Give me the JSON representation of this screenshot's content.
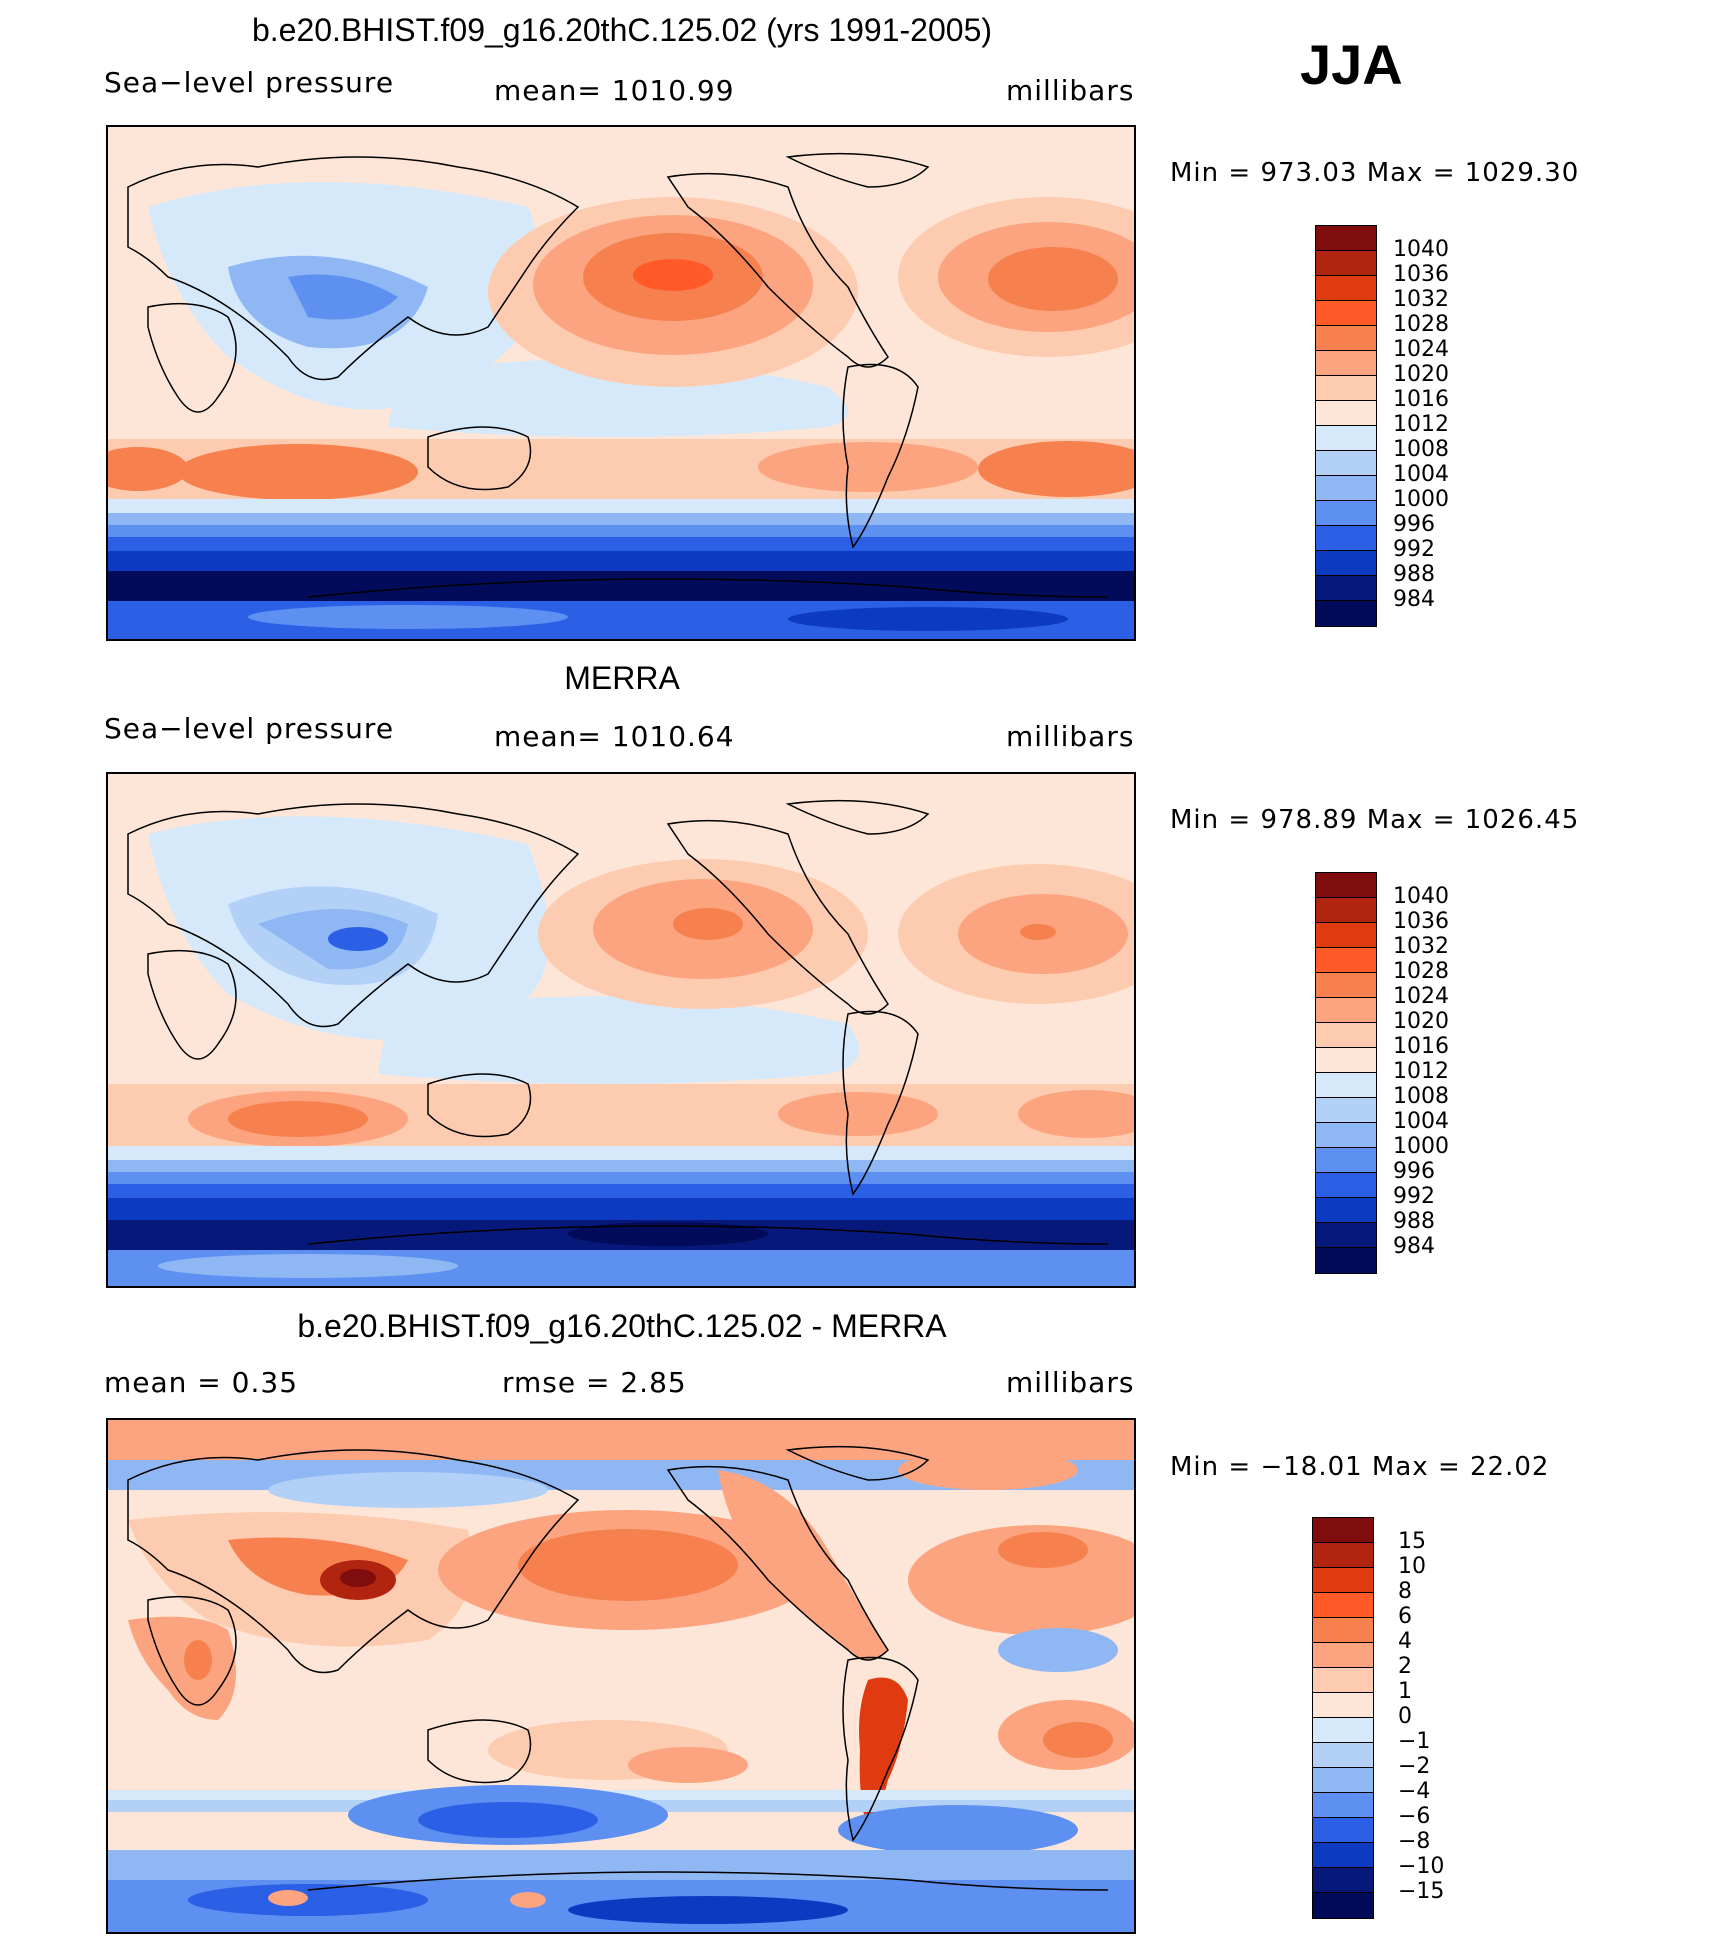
{
  "season": "JJA",
  "panels": [
    {
      "title": "b.e20.BHIST.f09_g16.20thC.125.02 (yrs 1991-2005)",
      "variable": "Sea−level pressure",
      "stat": "mean=  1010.99",
      "units": "millibars",
      "minmax": "Min  =  973.03  Max  =  1029.30",
      "colorbar_labels": [
        "1040",
        "1036",
        "1032",
        "1028",
        "1024",
        "1020",
        "1016",
        "1012",
        "1008",
        "1004",
        "1000",
        "996",
        "992",
        "988",
        "984"
      ]
    },
    {
      "title": "MERRA",
      "variable": "Sea−level pressure",
      "stat": "mean=  1010.64",
      "units": "millibars",
      "minmax": "Min  =  978.89  Max  =  1026.45",
      "colorbar_labels": [
        "1040",
        "1036",
        "1032",
        "1028",
        "1024",
        "1020",
        "1016",
        "1012",
        "1008",
        "1004",
        "1000",
        "996",
        "992",
        "988",
        "984"
      ]
    },
    {
      "title": "b.e20.BHIST.f09_g16.20thC.125.02 - MERRA",
      "stat_mean": "mean  =     0.35",
      "stat_rmse": "rmse  =     2.85",
      "units": "millibars",
      "minmax": "Min  =  −18.01  Max  =     22.02",
      "colorbar_labels": [
        "15",
        "10",
        "8",
        "6",
        "4",
        "2",
        "1",
        "0",
        "−1",
        "−2",
        "−4",
        "−6",
        "−8",
        "−10",
        "−15"
      ]
    }
  ],
  "colors": {
    "slp_scale": [
      "#7f0d0d",
      "#b02410",
      "#e03a10",
      "#ff5a28",
      "#f7804f",
      "#fba47f",
      "#fdcbb0",
      "#fde6d8",
      "#d6e9fb",
      "#b3d1f7",
      "#8fb7f4",
      "#5d90f0",
      "#2a5fe6",
      "#0c3bc2",
      "#06197a",
      "#020a5a"
    ],
    "diff_scale": [
      "#7f0d0d",
      "#b02410",
      "#e03a10",
      "#ff5a28",
      "#f7804f",
      "#fba47f",
      "#fdcbb0",
      "#fde6d8",
      "#d6e9fb",
      "#b3d1f7",
      "#8fb7f4",
      "#5d90f0",
      "#2a5fe6",
      "#0c3bc2",
      "#06197a",
      "#020a5a"
    ]
  }
}
